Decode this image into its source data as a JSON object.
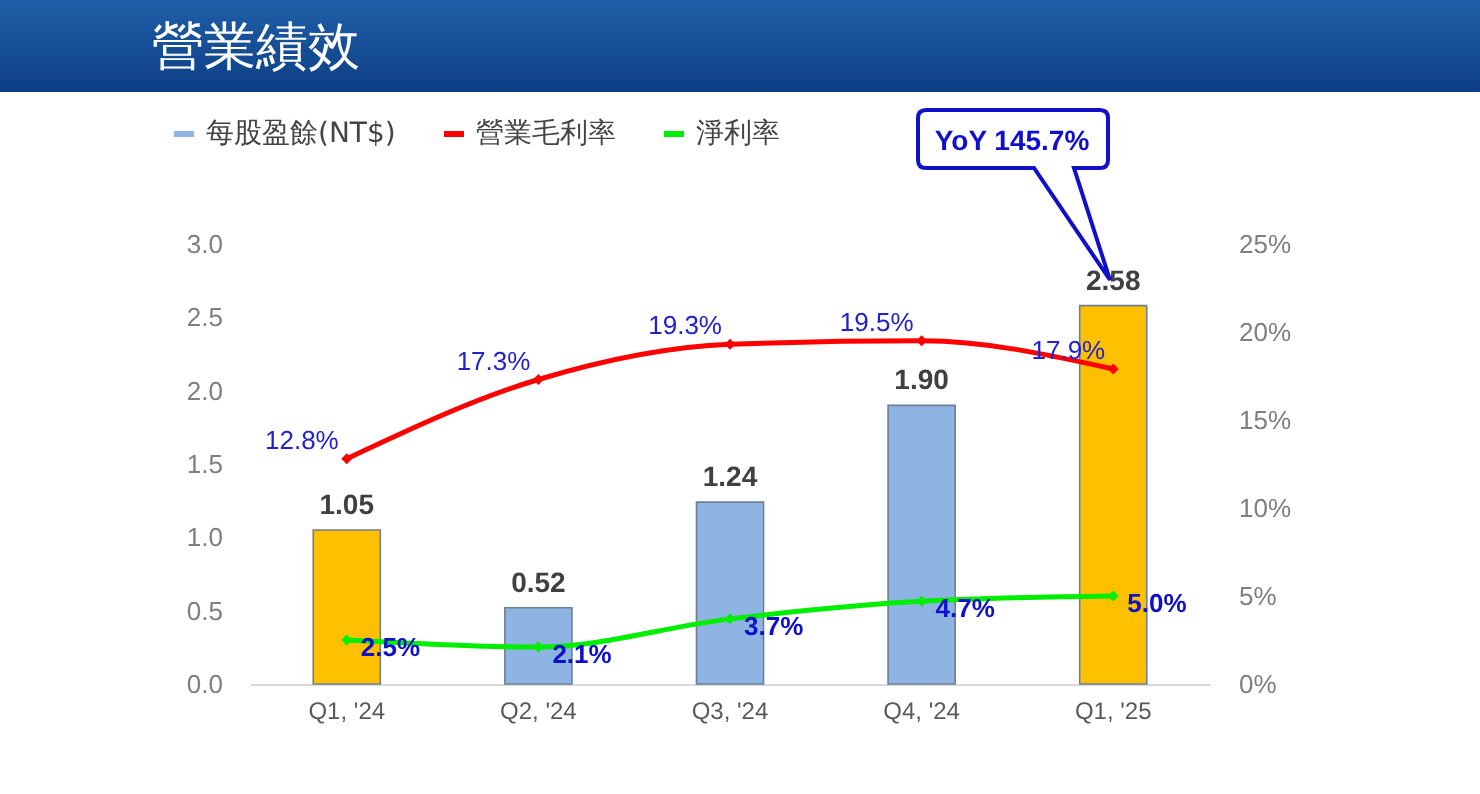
{
  "chart_data": {
    "type": "bar",
    "title": "營業績效",
    "categories": [
      "Q1, '24",
      "Q2, '24",
      "Q3, '24",
      "Q4, '24",
      "Q1, '25"
    ],
    "series": [
      {
        "name": "每股盈餘(NT$)",
        "color": "#8db4e2",
        "colors": [
          "#ffc000",
          "#8db4e2",
          "#8db4e2",
          "#8db4e2",
          "#ffc000"
        ],
        "values": [
          1.05,
          0.52,
          1.24,
          1.9,
          2.58
        ],
        "value_labels": [
          "1.05",
          "0.52",
          "1.24",
          "1.90",
          "2.58"
        ]
      },
      {
        "name": "營業毛利率",
        "type": "line",
        "axis": "y2",
        "color": "#ff0000",
        "values": [
          12.8,
          17.3,
          19.3,
          19.5,
          17.9
        ],
        "value_labels": [
          "12.8%",
          "17.3%",
          "19.3%",
          "19.5%",
          "17.9%"
        ]
      },
      {
        "name": "淨利率",
        "type": "line",
        "axis": "y2",
        "color": "#00ee00",
        "values": [
          2.5,
          2.1,
          3.7,
          4.7,
          5.0
        ],
        "value_labels": [
          "2.5%",
          "2.1%",
          "3.7%",
          "4.7%",
          "5.0%"
        ]
      }
    ],
    "ylim": [
      0,
      3
    ],
    "yticks": [
      {
        "value": 0,
        "label": "0.0"
      },
      {
        "value": 0.5,
        "label": "0.5"
      },
      {
        "value": 1,
        "label": "1.0"
      },
      {
        "value": 1.5,
        "label": "1.5"
      },
      {
        "value": 2,
        "label": "2.0"
      },
      {
        "value": 2.5,
        "label": "2.5"
      },
      {
        "value": 3,
        "label": "3.0"
      }
    ],
    "y2lim": [
      0,
      25
    ],
    "y2ticks": [
      {
        "value": 0,
        "label": "0%"
      },
      {
        "value": 5,
        "label": "5%"
      },
      {
        "value": 10,
        "label": "10%"
      },
      {
        "value": 15,
        "label": "15%"
      },
      {
        "value": 20,
        "label": "20%"
      },
      {
        "value": 25,
        "label": "25%"
      }
    ],
    "annotations": [
      "YoY 145.7%"
    ],
    "legend": "top left",
    "marker": "diamond",
    "line_style": "solid"
  }
}
